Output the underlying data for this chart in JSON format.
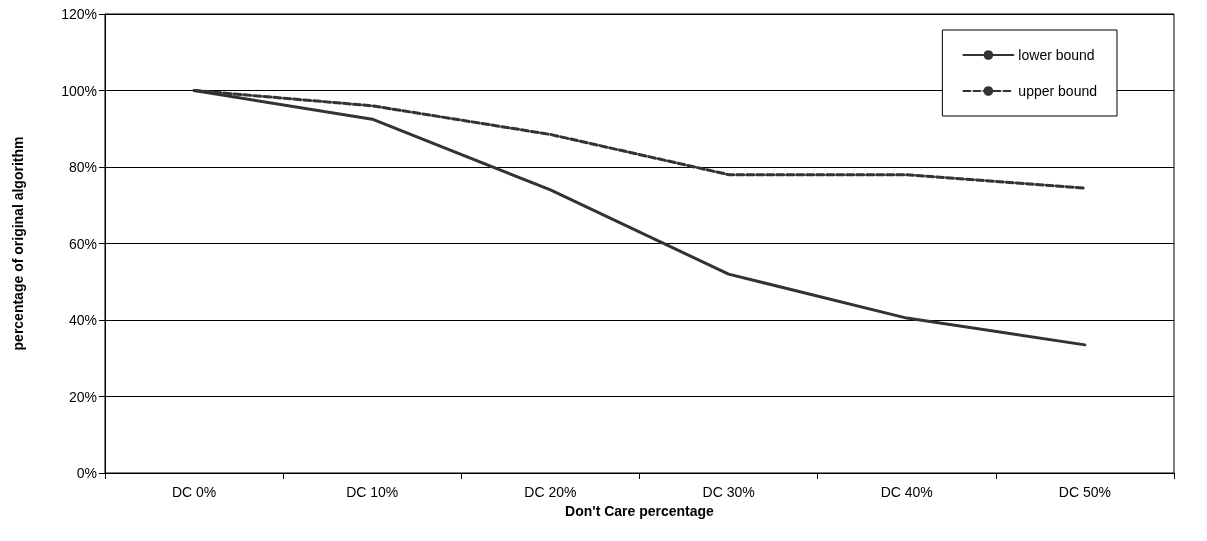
{
  "chart_data": {
    "type": "line",
    "xlabel": "Don't Care percentage",
    "ylabel": "percentage of original algorithm",
    "categories": [
      "DC 0%",
      "DC 10%",
      "DC 20%",
      "DC 30%",
      "DC 40%",
      "DC 50%"
    ],
    "series": [
      {
        "name": "lower bound",
        "color": "#333333",
        "line_style": "solid",
        "values": [
          100,
          92.5,
          74,
          52,
          40.5,
          33.5
        ]
      },
      {
        "name": "upper bound",
        "color": "#333333",
        "line_style": "dashed",
        "values": [
          100,
          96,
          88.5,
          78,
          78,
          74.5
        ]
      }
    ],
    "ylim": [
      0,
      120
    ],
    "yticks": [
      {
        "value": 0,
        "label": "0%"
      },
      {
        "value": 20,
        "label": "20%"
      },
      {
        "value": 40,
        "label": "40%"
      },
      {
        "value": 60,
        "label": "60%"
      },
      {
        "value": 80,
        "label": "80%"
      },
      {
        "value": 100,
        "label": "100%"
      },
      {
        "value": 120,
        "label": "120%"
      }
    ],
    "grid": "y",
    "legend": "top right",
    "marker": "none"
  }
}
